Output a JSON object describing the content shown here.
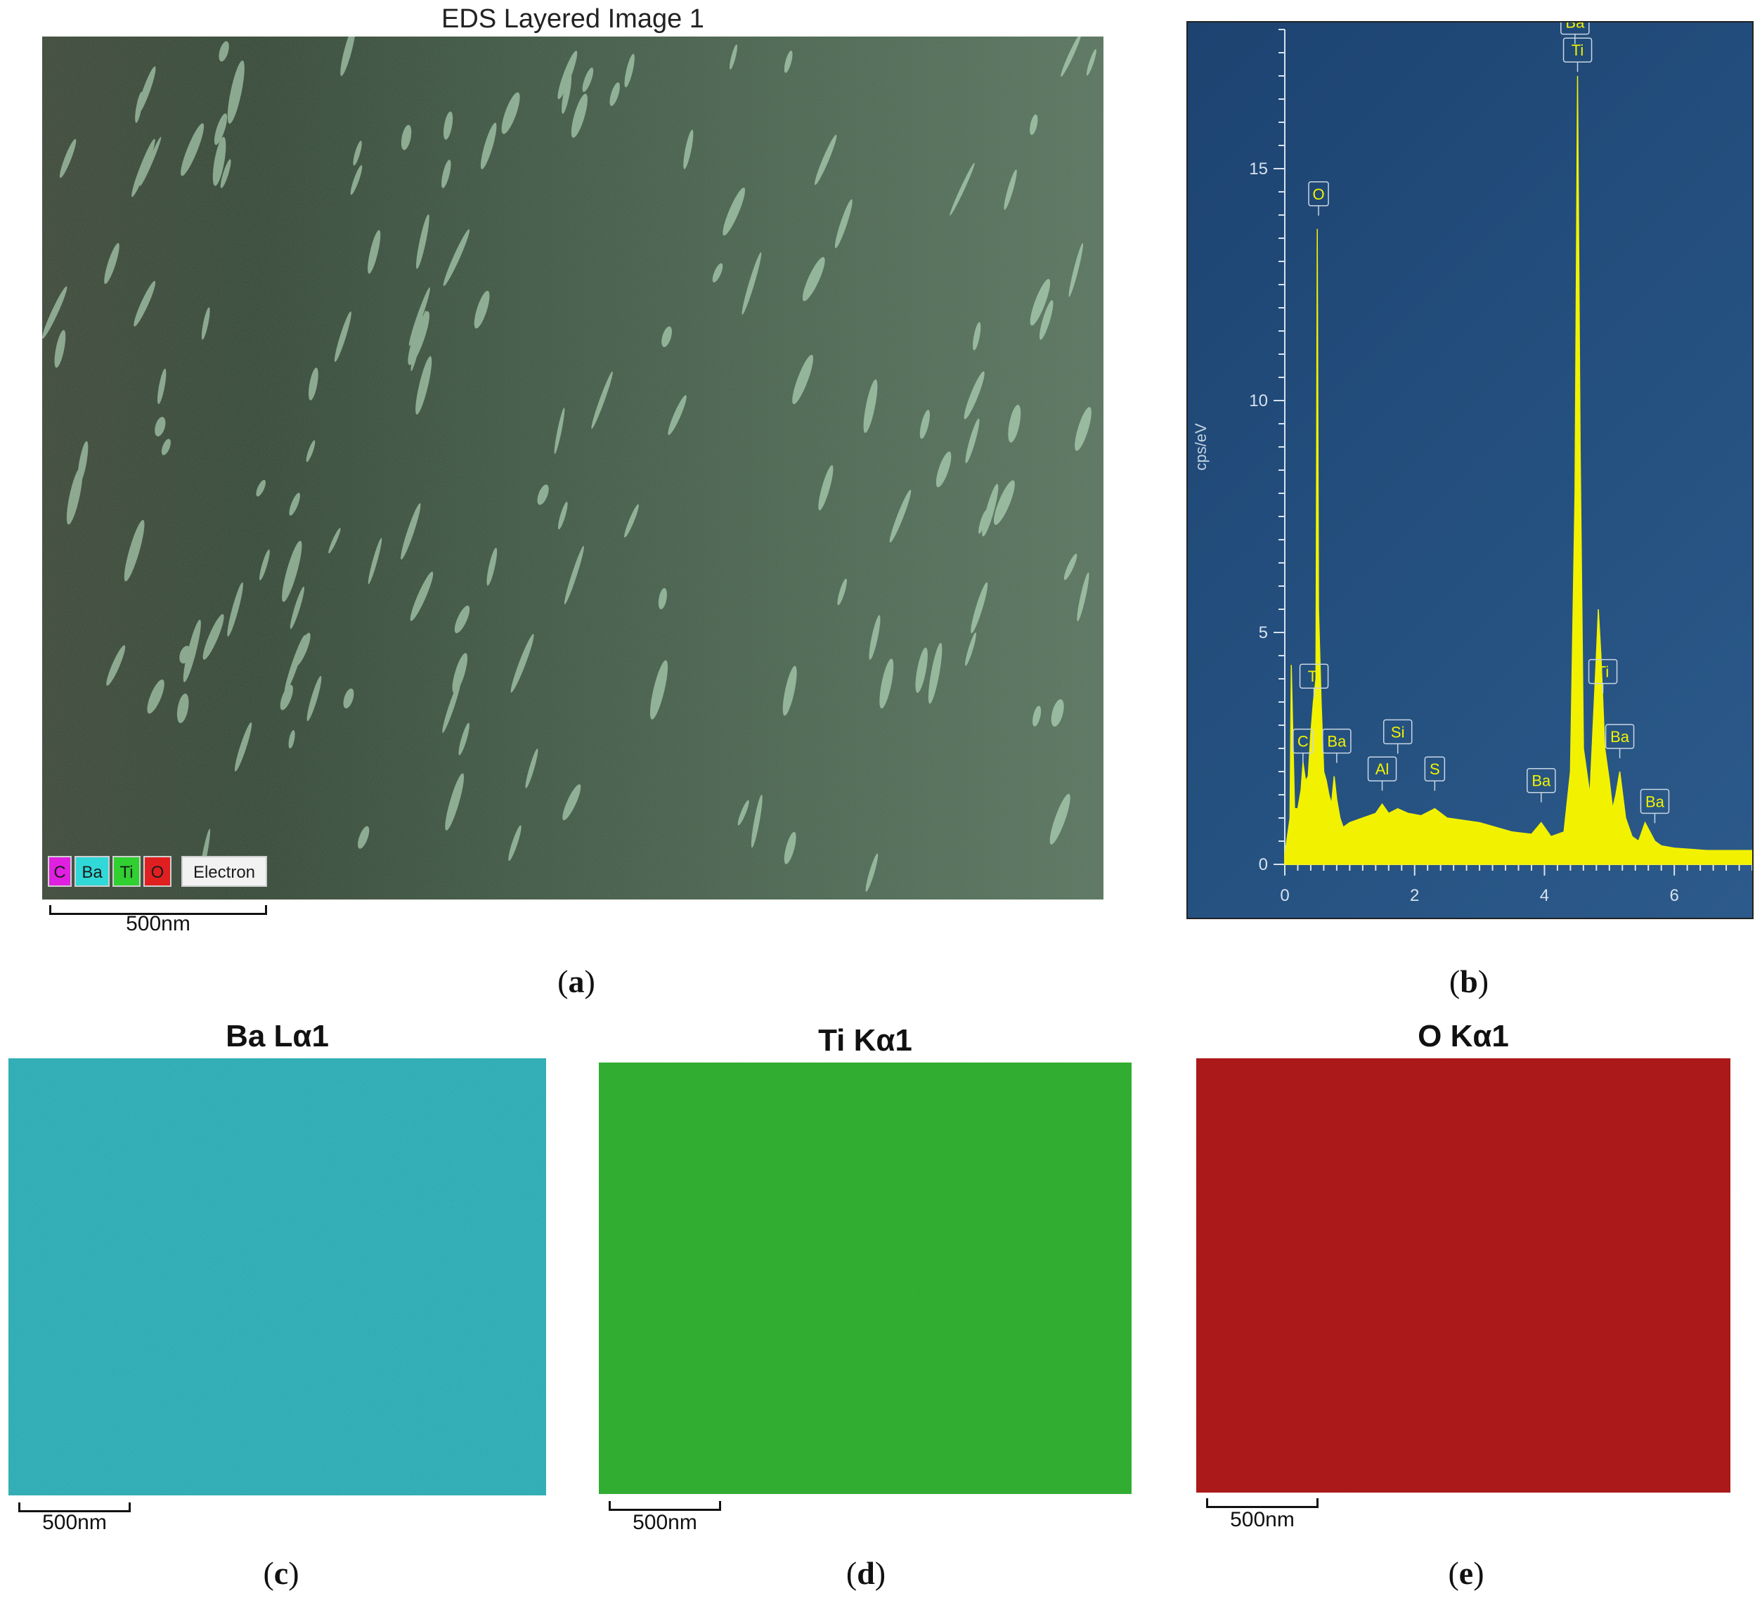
{
  "panel_a": {
    "title": "EDS Layered Image 1",
    "legend": [
      {
        "label": "C",
        "color": "#e020e0"
      },
      {
        "label": "Ba",
        "color": "#30d8d8"
      },
      {
        "label": "Ti",
        "color": "#30d030"
      },
      {
        "label": "O",
        "color": "#e02020"
      },
      {
        "label": "Electron",
        "color": "#f2f2f2"
      }
    ],
    "scale_label": "500nm",
    "caption_letter": "a"
  },
  "panel_b": {
    "caption_letter": "b",
    "background": "#1f4a78",
    "spectrum_color": "#f2f200"
  },
  "chart_data": {
    "type": "line",
    "title": "",
    "xlabel": "",
    "ylabel": "cps/eV",
    "xlim": [
      0,
      7.2
    ],
    "ylim": [
      0,
      18
    ],
    "x_ticks": [
      0,
      2,
      4,
      6
    ],
    "y_ticks": [
      0,
      5,
      10,
      15
    ],
    "series": [
      {
        "x": [
          0.0,
          0.08,
          0.1,
          0.15,
          0.2,
          0.25,
          0.28,
          0.32,
          0.36,
          0.4,
          0.44,
          0.48,
          0.5,
          0.52,
          0.56,
          0.6,
          0.64,
          0.68,
          0.72,
          0.76,
          0.8,
          0.85,
          0.9,
          1.0,
          1.2,
          1.4,
          1.5,
          1.6,
          1.74,
          1.9,
          2.1,
          2.31,
          2.5,
          3.0,
          3.5,
          3.8,
          3.95,
          4.1,
          4.3,
          4.4,
          4.47,
          4.51,
          4.55,
          4.6,
          4.7,
          4.8,
          4.83,
          4.87,
          4.93,
          5.0,
          5.05,
          5.1,
          5.16,
          5.25,
          5.35,
          5.45,
          5.55,
          5.7,
          5.8,
          6.0,
          6.5,
          7.2
        ],
        "y": [
          0.2,
          1.0,
          4.3,
          1.2,
          1.2,
          1.6,
          2.2,
          1.8,
          1.9,
          2.8,
          3.5,
          4.0,
          13.7,
          5.5,
          3.5,
          2.0,
          1.8,
          1.5,
          1.3,
          1.9,
          1.4,
          1.0,
          0.8,
          0.9,
          1.0,
          1.1,
          1.3,
          1.1,
          1.2,
          1.1,
          1.05,
          1.2,
          1.0,
          0.9,
          0.7,
          0.65,
          0.9,
          0.6,
          0.7,
          2.0,
          8.0,
          17.0,
          9.0,
          2.5,
          1.5,
          4.5,
          5.5,
          4.5,
          2.5,
          1.8,
          1.2,
          1.5,
          2.0,
          1.0,
          0.6,
          0.5,
          0.9,
          0.5,
          0.4,
          0.35,
          0.3,
          0.3
        ]
      }
    ],
    "annotations": [
      {
        "label": "Ba",
        "x": 4.47,
        "y": 17.9
      },
      {
        "label": "Ti",
        "x": 4.51,
        "y": 17.3
      },
      {
        "label": "O",
        "x": 0.52,
        "y": 14.2
      },
      {
        "label": "Ti",
        "x": 0.45,
        "y": 3.8
      },
      {
        "label": "C",
        "x": 0.28,
        "y": 2.4
      },
      {
        "label": "Ba",
        "x": 0.8,
        "y": 2.4
      },
      {
        "label": "Al",
        "x": 1.5,
        "y": 1.8
      },
      {
        "label": "Si",
        "x": 1.74,
        "y": 2.6
      },
      {
        "label": "S",
        "x": 2.31,
        "y": 1.8
      },
      {
        "label": "Ba",
        "x": 3.95,
        "y": 1.55
      },
      {
        "label": "Ti",
        "x": 4.9,
        "y": 3.9
      },
      {
        "label": "Ba",
        "x": 5.16,
        "y": 2.5
      },
      {
        "label": "Ba",
        "x": 5.7,
        "y": 1.1
      }
    ],
    "grid": false
  },
  "panel_c": {
    "title": "Ba Lα1",
    "scale_label": "500nm",
    "caption_letter": "c",
    "color": "#2fbcc4"
  },
  "panel_d": {
    "title": "Ti Kα1",
    "scale_label": "500nm",
    "caption_letter": "d",
    "color": "#2cb82c"
  },
  "panel_e": {
    "title": "O Kα1",
    "scale_label": "500nm",
    "caption_letter": "e",
    "color": "#b81414"
  }
}
